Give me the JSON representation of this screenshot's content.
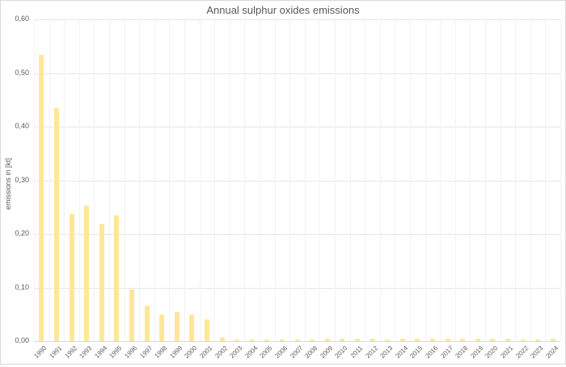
{
  "chart_data": {
    "type": "bar",
    "title": "Annual sulphur oxides emissions",
    "xlabel": "",
    "ylabel": "emissions in [kt]",
    "ylim": [
      0,
      0.6
    ],
    "yticks": [
      "0,00",
      "0,10",
      "0,20",
      "0,30",
      "0,40",
      "0,50",
      "0,60"
    ],
    "grid": true,
    "legend": null,
    "bar_color": "#FFE699",
    "categories": [
      "1990",
      "1991",
      "1992",
      "1993",
      "1994",
      "1995",
      "1996",
      "1997",
      "1998",
      "1999",
      "2000",
      "2001",
      "2002",
      "2003",
      "2004",
      "2005",
      "2006",
      "2007",
      "2008",
      "2009",
      "2010",
      "2011",
      "2012",
      "2013",
      "2014",
      "2015",
      "2016",
      "2017",
      "2018",
      "2019",
      "2020",
      "2021",
      "2022",
      "2023",
      "2024"
    ],
    "values": [
      0.534,
      0.435,
      0.237,
      0.253,
      0.218,
      0.235,
      0.096,
      0.066,
      0.049,
      0.054,
      0.05,
      0.04,
      0.008,
      0.003,
      0.003,
      0.003,
      0.003,
      0.003,
      0.003,
      0.004,
      0.004,
      0.004,
      0.004,
      0.003,
      0.004,
      0.004,
      0.004,
      0.004,
      0.004,
      0.004,
      0.004,
      0.004,
      0.003,
      0.003,
      0.004
    ]
  }
}
